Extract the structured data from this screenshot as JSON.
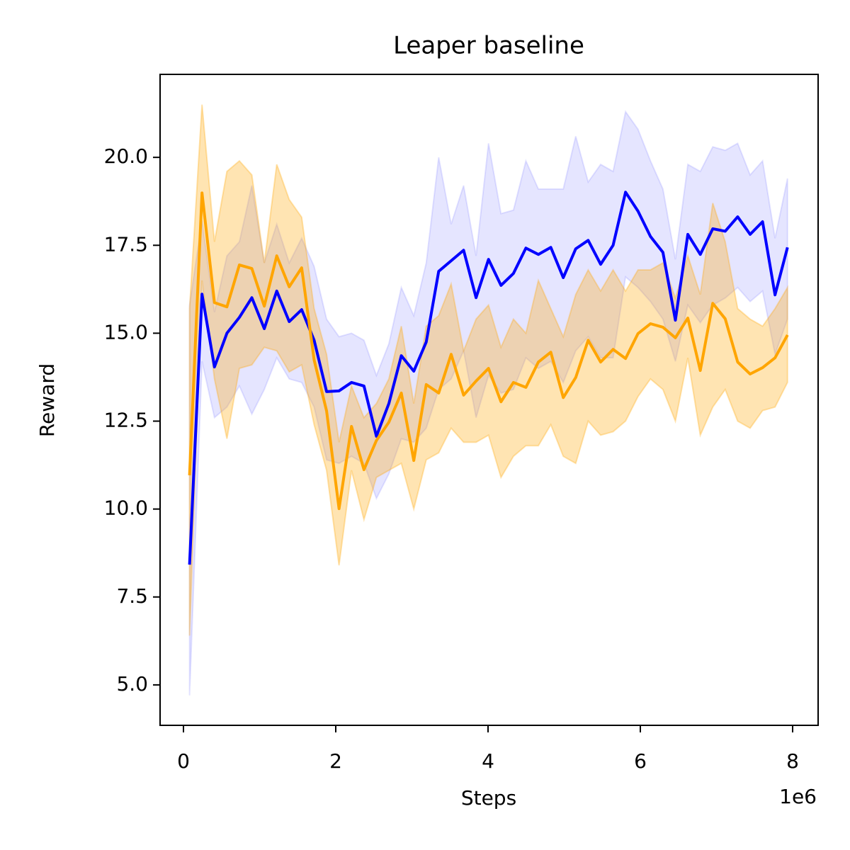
{
  "chart_data": {
    "type": "line",
    "title": "Leaper baseline",
    "xlabel": "Steps",
    "ylabel": "Reward",
    "x_offset_label": "1e6",
    "x": [
      0.08,
      0.2436,
      0.4072,
      0.5708,
      0.7344,
      0.898,
      1.0616,
      1.2252,
      1.3888,
      1.5524,
      1.716,
      1.8796,
      2.0432,
      2.2068,
      2.3704,
      2.534,
      2.6976,
      2.8612,
      3.0248,
      3.1884,
      3.352,
      3.5156,
      3.6792,
      3.8428,
      4.0064,
      4.17,
      4.3336,
      4.4972,
      4.6608,
      4.8244,
      4.988,
      5.1516,
      5.3152,
      5.4788,
      5.6424,
      5.806,
      5.9696,
      6.1332,
      6.2968,
      6.4604,
      6.624,
      6.7876,
      6.9512,
      7.1148,
      7.2784,
      7.442,
      7.6056,
      7.7692,
      7.9328
    ],
    "series": [
      {
        "color": "#0000ff",
        "band_opacity": 0.1,
        "values": [
          8.42,
          16.11,
          14.04,
          15.0,
          15.45,
          16.01,
          15.13,
          16.2,
          15.33,
          15.67,
          14.8,
          13.34,
          13.36,
          13.6,
          13.5,
          12.07,
          13.0,
          14.36,
          13.92,
          14.75,
          16.76,
          17.06,
          17.36,
          16.01,
          17.1,
          16.36,
          16.7,
          17.42,
          17.24,
          17.44,
          16.58,
          17.4,
          17.64,
          16.96,
          17.5,
          19.01,
          18.47,
          17.75,
          17.3,
          15.37,
          17.81,
          17.24,
          17.97,
          17.9,
          18.31,
          17.81,
          18.17,
          16.09,
          17.44
        ],
        "lower": [
          4.7,
          14.2,
          12.6,
          12.9,
          13.5,
          12.7,
          13.4,
          14.3,
          13.7,
          13.6,
          12.9,
          11.4,
          11.3,
          11.5,
          11.3,
          10.3,
          11.0,
          12.0,
          11.9,
          12.3,
          13.4,
          13.7,
          14.5,
          12.6,
          13.8,
          13.3,
          13.4,
          14.3,
          14.0,
          14.2,
          13.6,
          14.5,
          14.9,
          14.3,
          14.3,
          16.6,
          16.3,
          15.9,
          15.4,
          14.2,
          15.8,
          15.3,
          15.8,
          16.0,
          16.3,
          15.9,
          16.2,
          14.4,
          15.4
        ],
        "upper": [
          15.8,
          18.2,
          15.6,
          17.2,
          17.6,
          19.2,
          17.0,
          18.1,
          17.0,
          17.7,
          16.9,
          15.4,
          14.9,
          15.0,
          14.8,
          13.8,
          14.7,
          16.3,
          15.5,
          17.0,
          20.0,
          18.1,
          19.2,
          17.2,
          20.4,
          18.4,
          18.5,
          19.9,
          19.1,
          19.1,
          19.1,
          20.6,
          19.3,
          19.8,
          19.6,
          21.3,
          20.8,
          19.9,
          19.1,
          17.1,
          19.8,
          19.6,
          20.3,
          20.2,
          20.4,
          19.5,
          19.9,
          17.7,
          19.4
        ]
      },
      {
        "color": "#ffa500",
        "band_opacity": 0.3,
        "values": [
          10.96,
          18.99,
          15.87,
          15.75,
          16.94,
          16.84,
          15.77,
          17.2,
          16.32,
          16.86,
          14.24,
          12.79,
          10.01,
          12.35,
          11.12,
          11.95,
          12.47,
          13.3,
          11.38,
          13.54,
          13.3,
          14.4,
          13.24,
          13.64,
          14.0,
          13.05,
          13.6,
          13.46,
          14.18,
          14.46,
          13.17,
          13.74,
          14.8,
          14.18,
          14.54,
          14.28,
          14.99,
          15.27,
          15.17,
          14.87,
          15.43,
          13.94,
          15.85,
          15.41,
          14.18,
          13.84,
          14.02,
          14.3,
          14.95
        ],
        "lower": [
          6.4,
          16.5,
          13.7,
          12.0,
          14.0,
          14.1,
          14.6,
          14.5,
          13.9,
          14.1,
          12.4,
          11.1,
          8.4,
          11.1,
          9.7,
          10.9,
          11.1,
          11.3,
          10.0,
          11.4,
          11.6,
          12.3,
          11.9,
          11.9,
          12.1,
          10.9,
          11.5,
          11.8,
          11.8,
          12.4,
          11.5,
          11.3,
          12.5,
          12.1,
          12.2,
          12.5,
          13.2,
          13.7,
          13.4,
          12.5,
          14.3,
          12.1,
          12.9,
          13.4,
          12.5,
          12.3,
          12.8,
          12.9,
          13.6
        ],
        "upper": [
          15.7,
          21.5,
          17.6,
          19.6,
          19.9,
          19.5,
          17.0,
          19.8,
          18.8,
          18.3,
          15.7,
          14.4,
          11.9,
          13.5,
          12.6,
          13.0,
          13.7,
          15.2,
          13.0,
          15.2,
          15.5,
          16.4,
          14.5,
          15.4,
          15.8,
          14.6,
          15.4,
          15.0,
          16.5,
          15.7,
          14.9,
          16.1,
          16.8,
          16.2,
          16.8,
          16.2,
          16.8,
          16.8,
          17.0,
          16.0,
          17.2,
          16.1,
          18.7,
          17.6,
          15.7,
          15.4,
          15.2,
          15.7,
          16.3
        ]
      }
    ],
    "xlim": [
      -0.307,
      8.335
    ],
    "ylim": [
      3.85,
      22.36
    ],
    "xticks": [
      0,
      2,
      4,
      6,
      8
    ],
    "yticks": [
      {
        "value": 5,
        "label": "5.0"
      },
      {
        "value": 7.5,
        "label": "7.5"
      },
      {
        "value": 10,
        "label": "10.0"
      },
      {
        "value": 12.5,
        "label": "12.5"
      },
      {
        "value": 15,
        "label": "15.0"
      },
      {
        "value": 17.5,
        "label": "17.5"
      },
      {
        "value": 20,
        "label": "20.0"
      }
    ],
    "grid": false
  }
}
